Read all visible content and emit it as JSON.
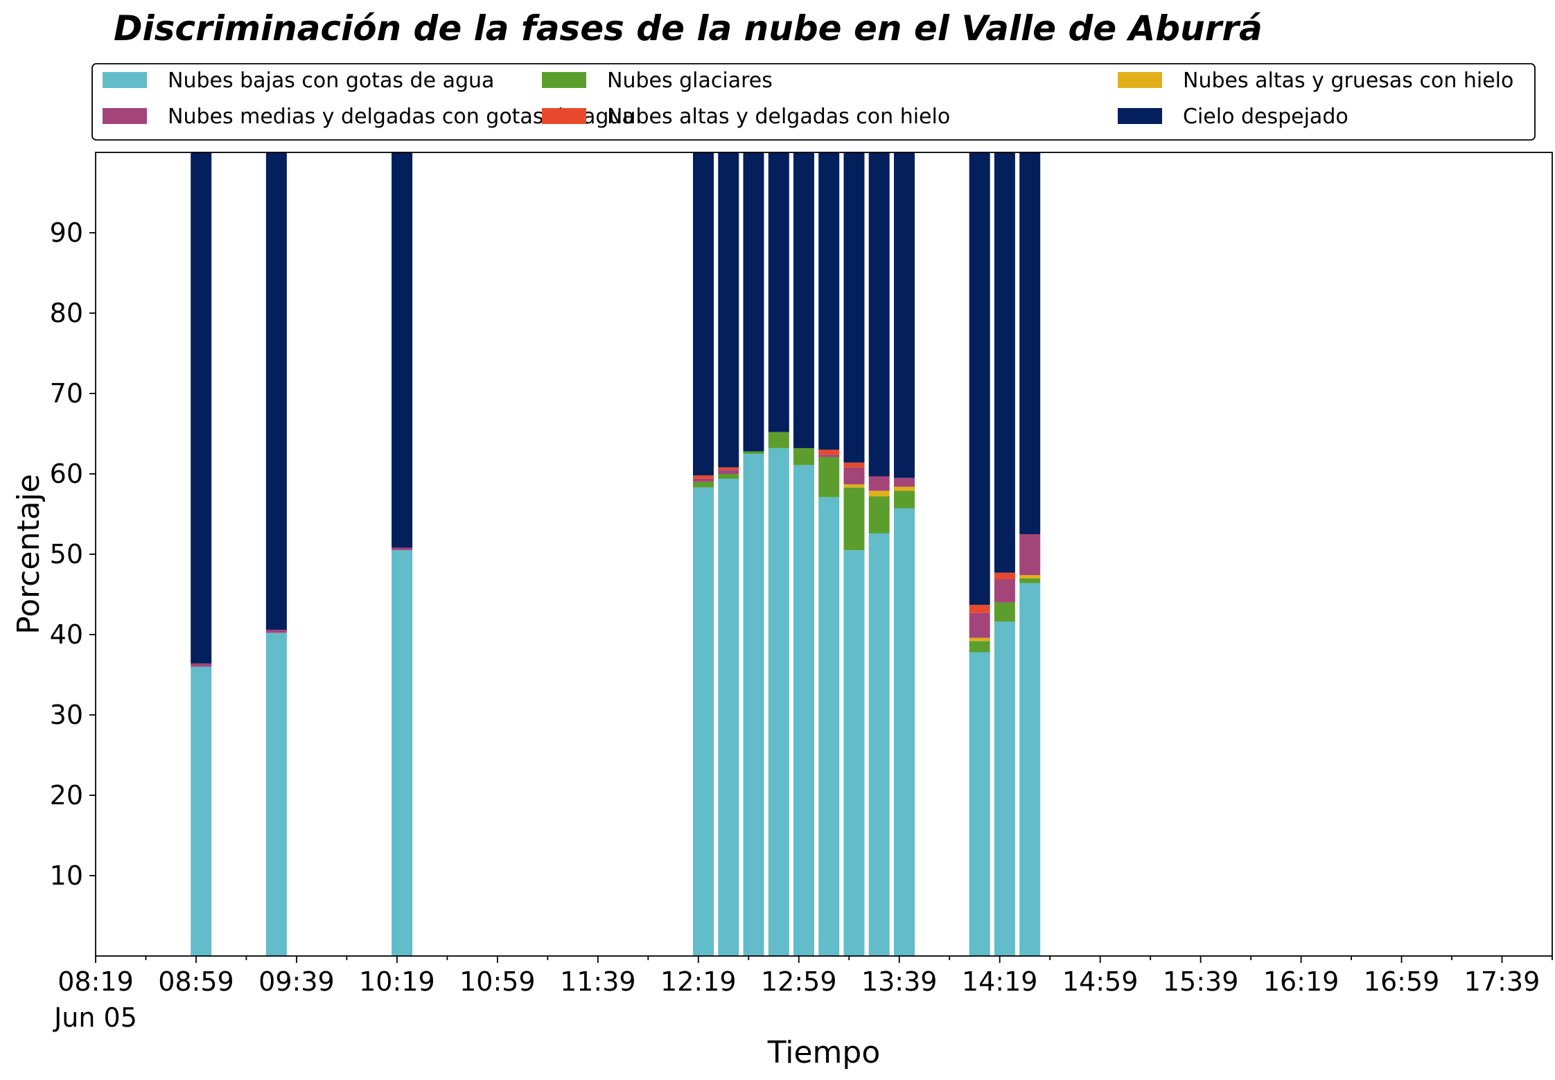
{
  "chart_data": {
    "type": "bar",
    "stacked": true,
    "title": "Discriminación de la fases de la nube en el Valle de Aburrá",
    "xlabel": "Tiempo",
    "ylabel": "Porcentaje",
    "ylim": [
      0,
      100
    ],
    "yticks": [
      10,
      20,
      30,
      40,
      50,
      60,
      70,
      80,
      90
    ],
    "x_axis_start": "08:19",
    "x_axis_end": "17:59",
    "xticks": [
      "08:19",
      "08:59",
      "09:39",
      "10:19",
      "10:59",
      "11:39",
      "12:19",
      "12:59",
      "13:39",
      "14:19",
      "14:59",
      "15:39",
      "16:19",
      "16:59",
      "17:39"
    ],
    "x_date_label": "Jun 05",
    "grid": false,
    "legend_position": "top",
    "categories": [
      "09:01",
      "09:31",
      "10:21",
      "12:21",
      "12:31",
      "12:41",
      "12:51",
      "13:01",
      "13:11",
      "13:21",
      "13:31",
      "13:41",
      "13:51",
      "14:11",
      "14:21",
      "14:31"
    ],
    "series": [
      {
        "name": "Nubes bajas con gotas de agua",
        "color": "#63BCC9",
        "values": [
          36.0,
          40.2,
          50.5,
          58.3,
          59.4,
          62.5,
          63.2,
          61.1,
          57.1,
          50.5,
          52.6,
          55.7,
          0,
          37.8,
          41.6,
          46.4
        ]
      },
      {
        "name": "Nubes glaciares",
        "color": "#5C9E2D",
        "values": [
          0,
          0,
          0,
          0.7,
          0.6,
          0.3,
          2.0,
          2.1,
          5.0,
          7.8,
          4.6,
          2.2,
          0,
          1.4,
          2.4,
          0.6
        ]
      },
      {
        "name": "Nubes altas y gruesas con hielo",
        "color": "#E1B018",
        "values": [
          0,
          0,
          0,
          0,
          0,
          0,
          0,
          0,
          0,
          0.4,
          0.7,
          0.5,
          0,
          0.4,
          0,
          0.4
        ]
      },
      {
        "name": "Nubes medias y delgadas con gotas de agua",
        "color": "#A4457A",
        "values": [
          0.4,
          0.4,
          0.3,
          0.4,
          0.5,
          0,
          0,
          0,
          0.3,
          2.1,
          1.8,
          1.1,
          0,
          3.1,
          2.9,
          5.1
        ]
      },
      {
        "name": "Nubes altas y delgadas con hielo",
        "color": "#E8492C",
        "values": [
          0,
          0,
          0,
          0.4,
          0.3,
          0,
          0,
          0,
          0.6,
          0.6,
          0,
          0,
          0,
          1.0,
          0.8,
          0
        ]
      },
      {
        "name": "Cielo despejado",
        "color": "#031F5C",
        "values": [
          63.6,
          59.4,
          49.2,
          40.2,
          39.2,
          37.2,
          34.8,
          36.8,
          37.0,
          38.6,
          40.3,
          40.5,
          0,
          56.3,
          52.3,
          47.5
        ]
      }
    ]
  }
}
